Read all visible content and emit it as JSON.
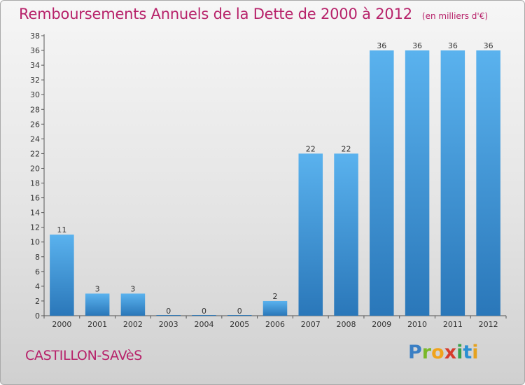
{
  "header": {
    "title": "Remboursements Annuels de la Dette de 2000 à 2012",
    "subtitle": "(en milliers d'€)"
  },
  "footer": {
    "commune": "CASTILLON-SAVèS",
    "logo": [
      "P",
      "r",
      "o",
      "x",
      "i",
      "t",
      "i"
    ]
  },
  "chart_data": {
    "type": "bar",
    "title": "Remboursements Annuels de la Dette de 2000 à 2012",
    "subtitle": "(en milliers d'€)",
    "categories": [
      "2000",
      "2001",
      "2002",
      "2003",
      "2004",
      "2005",
      "2006",
      "2007",
      "2008",
      "2009",
      "2010",
      "2011",
      "2012"
    ],
    "values": [
      11,
      3,
      3,
      0,
      0,
      0,
      2,
      22,
      22,
      36,
      36,
      36,
      36
    ],
    "ylim": [
      0,
      38
    ],
    "yticks": [
      0,
      2,
      4,
      6,
      8,
      10,
      12,
      14,
      16,
      18,
      20,
      22,
      24,
      26,
      28,
      30,
      32,
      34,
      36,
      38
    ],
    "grid": false,
    "bar_color": "#4a9ee0",
    "bar_color_light": "#5fb0ec",
    "bar_color_dark": "#2f7fc2"
  }
}
